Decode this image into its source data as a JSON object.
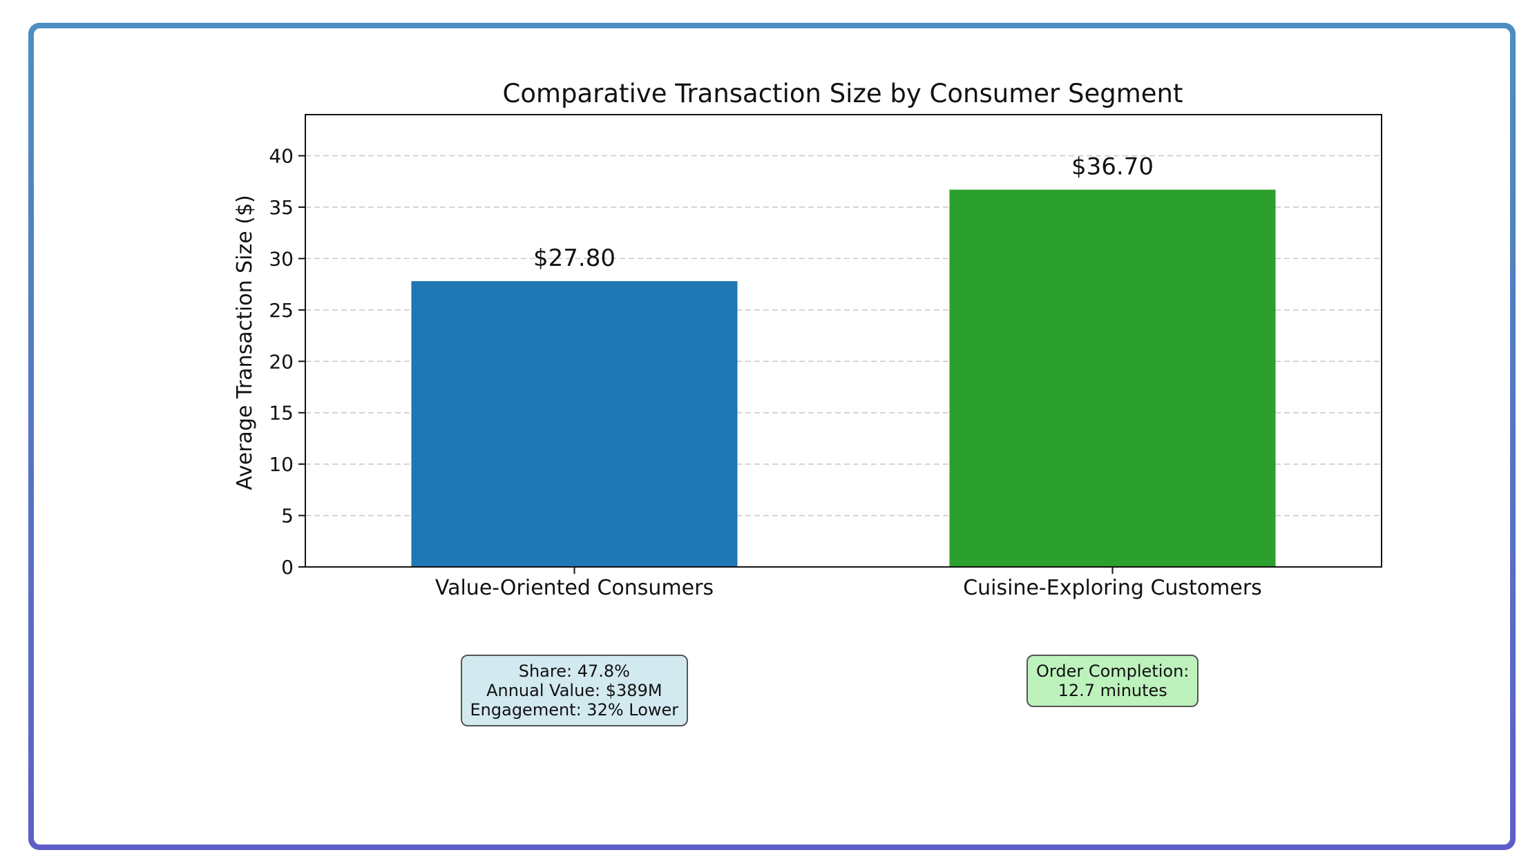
{
  "chart_data": {
    "type": "bar",
    "title": "Comparative Transaction Size by Consumer Segment",
    "xlabel": "",
    "ylabel": "Average Transaction Size ($)",
    "categories": [
      "Value-Oriented Consumers",
      "Cuisine-Exploring Customers"
    ],
    "values": [
      27.8,
      36.7
    ],
    "value_labels": [
      "$27.80",
      "$36.70"
    ],
    "colors": [
      "#1f77b4",
      "#2ca02c"
    ],
    "ylim": [
      0,
      44
    ],
    "yticks": [
      0,
      5,
      10,
      15,
      20,
      25,
      30,
      35,
      40
    ],
    "grid": true,
    "annotations": [
      {
        "category": "Value-Oriented Consumers",
        "lines": [
          "Share: 47.8%",
          "Annual Value: $389M",
          "Engagement: 32% Lower"
        ],
        "color": "#d2e9f0"
      },
      {
        "category": "Cuisine-Exploring Customers",
        "lines": [
          "Order Completion:",
          "12.7 minutes"
        ],
        "color": "#bdf2bd"
      }
    ]
  }
}
